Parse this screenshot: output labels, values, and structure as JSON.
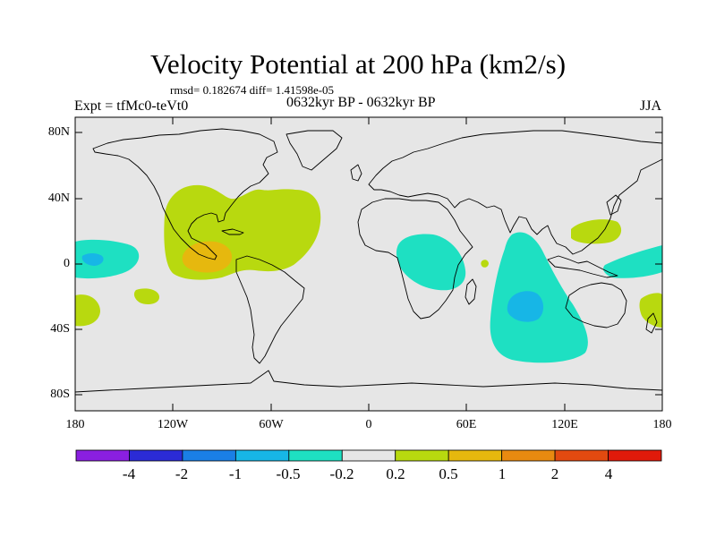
{
  "figure": {
    "title": "Velocity Potential at 200 hPa (km2/s)",
    "stats": "rmsd= 0.182674 diff= 1.41598e-05",
    "experiment": "Expt = tfMc0-teVt0",
    "period": "0632kyr BP - 0632kyr BP",
    "season": "JJA"
  },
  "axes": {
    "lat_ticks": [
      "80N",
      "40N",
      "0",
      "40S",
      "80S"
    ],
    "lon_ticks": [
      "180",
      "120W",
      "60W",
      "0",
      "60E",
      "120E",
      "180"
    ]
  },
  "colorbar": {
    "labels": [
      "-4",
      "-2",
      "-1",
      "-0.5",
      "-0.2",
      "0.2",
      "0.5",
      "1",
      "2",
      "4"
    ],
    "colors": [
      "#8a1fe0",
      "#2b2bd6",
      "#1a7fe6",
      "#17b6e6",
      "#1ee0c2",
      "#e6e6e6",
      "#b8d90f",
      "#e6b80e",
      "#e88a10",
      "#e24a10",
      "#e01a0a"
    ]
  },
  "map_colors": {
    "background": "#e6e6e6",
    "positive_low": "#b8d90f",
    "positive_mid": "#e6b80e",
    "positive_high": "#e88a10",
    "negative_low": "#1ee0c2",
    "negative_mid": "#17b6e6",
    "coast": "#000000"
  }
}
